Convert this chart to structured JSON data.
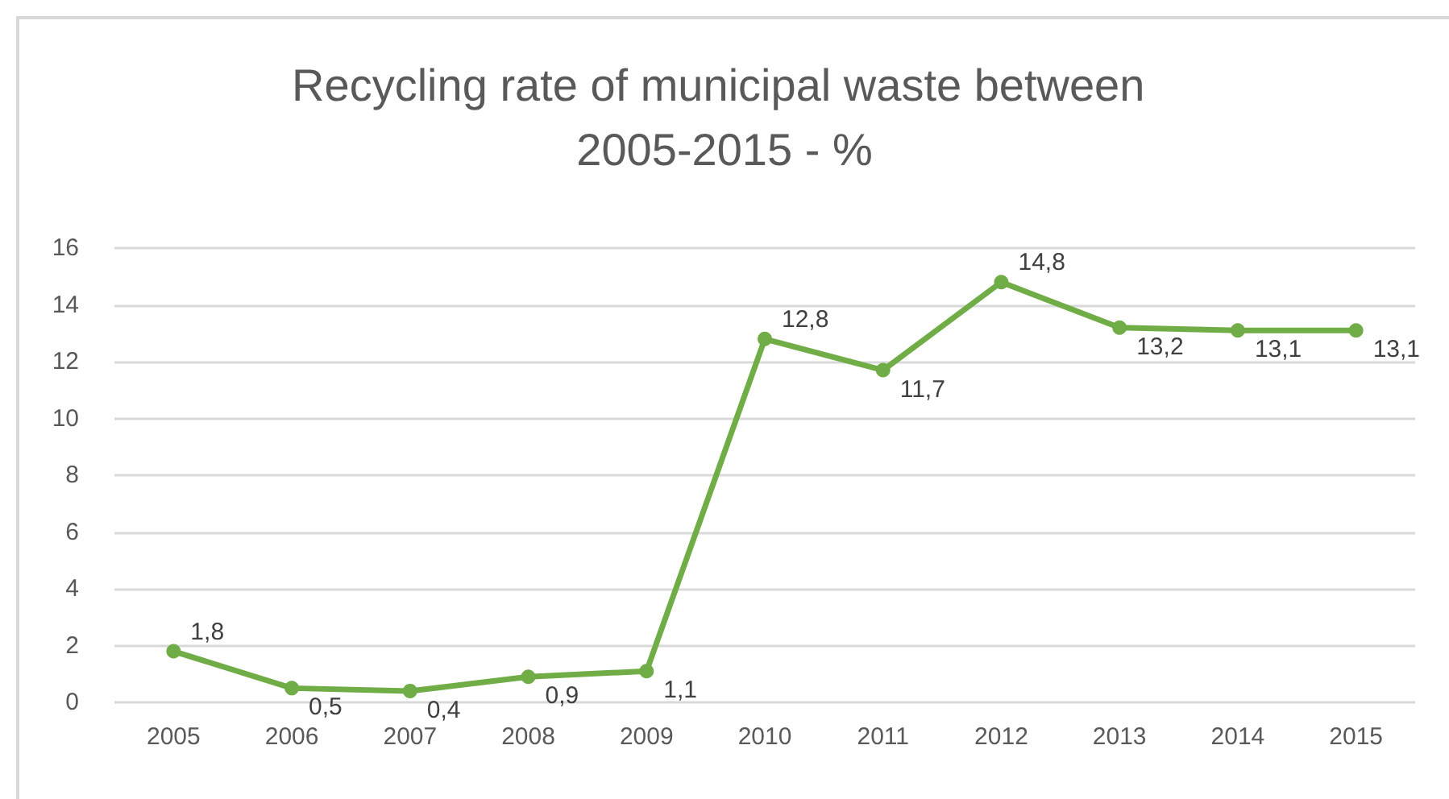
{
  "chart_data": {
    "type": "line",
    "title": "Recycling rate of municipal waste between 2005-2015 - %",
    "categories": [
      "2005",
      "2006",
      "2007",
      "2008",
      "2009",
      "2010",
      "2011",
      "2012",
      "2013",
      "2014",
      "2015"
    ],
    "series": [
      {
        "color": "#70ad47",
        "values": [
          1.8,
          0.5,
          0.4,
          0.9,
          1.1,
          12.8,
          11.7,
          14.8,
          13.2,
          13.1,
          13.1
        ],
        "value_labels": [
          "1,8",
          "0,5",
          "0,4",
          "0,9",
          "1,1",
          "12,8",
          "11,7",
          "14,8",
          "13,2",
          "13,1",
          "13,1"
        ]
      }
    ],
    "ylim": [
      0,
      16
    ],
    "yticks": [
      0,
      2,
      4,
      6,
      8,
      10,
      12,
      14,
      16
    ],
    "grid": "y",
    "marker": "circle",
    "line_style": "solid"
  }
}
